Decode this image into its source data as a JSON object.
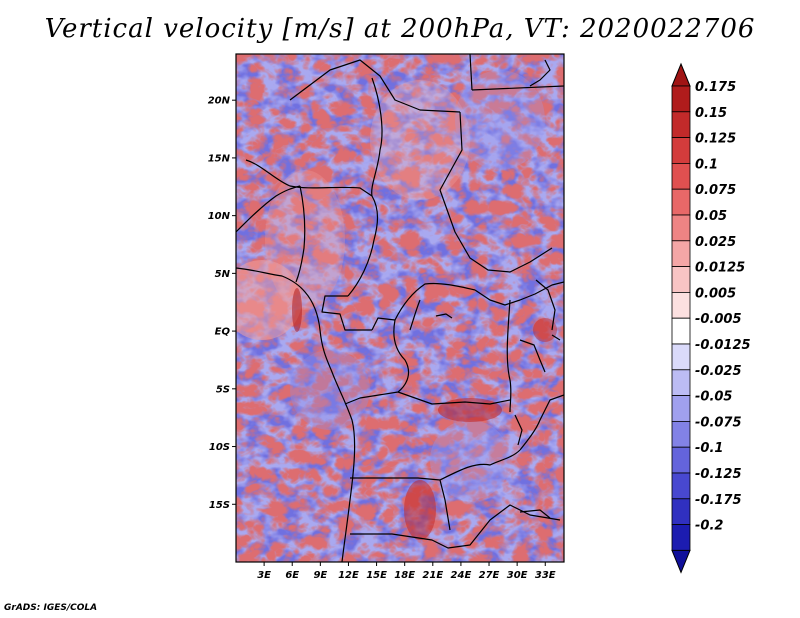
{
  "title": "Vertical velocity [m/s] at 200hPa, VT: 2020022706",
  "credit": "GrADS: IGES/COLA",
  "map": {
    "variable": "Vertical velocity",
    "units": "m/s",
    "level": "200hPa",
    "valid_time": "2020022706",
    "lon_range": [
      0,
      35
    ],
    "lat_range": [
      -20,
      24
    ],
    "lon_ticks": [
      {
        "value": 3,
        "label": "3E"
      },
      {
        "value": 6,
        "label": "6E"
      },
      {
        "value": 9,
        "label": "9E"
      },
      {
        "value": 12,
        "label": "12E"
      },
      {
        "value": 15,
        "label": "15E"
      },
      {
        "value": 18,
        "label": "18E"
      },
      {
        "value": 21,
        "label": "21E"
      },
      {
        "value": 24,
        "label": "24E"
      },
      {
        "value": 27,
        "label": "27E"
      },
      {
        "value": 30,
        "label": "30E"
      },
      {
        "value": 33,
        "label": "33E"
      }
    ],
    "lat_ticks": [
      {
        "value": 20,
        "label": "20N"
      },
      {
        "value": 15,
        "label": "15N"
      },
      {
        "value": 10,
        "label": "10N"
      },
      {
        "value": 5,
        "label": "5N"
      },
      {
        "value": 0,
        "label": "EQ"
      },
      {
        "value": -5,
        "label": "5S"
      },
      {
        "value": -10,
        "label": "10S"
      },
      {
        "value": -15,
        "label": "15S"
      }
    ]
  },
  "colorbar": {
    "levels": [
      {
        "label": "0.175",
        "color": "#b01c1c"
      },
      {
        "label": "0.15",
        "color": "#c22a2a"
      },
      {
        "label": "0.125",
        "color": "#d33c3c"
      },
      {
        "label": "0.1",
        "color": "#e05050"
      },
      {
        "label": "0.075",
        "color": "#e86868"
      },
      {
        "label": "0.05",
        "color": "#ee8484"
      },
      {
        "label": "0.025",
        "color": "#f4a6a6"
      },
      {
        "label": "0.0125",
        "color": "#f8c4c4"
      },
      {
        "label": "0.005",
        "color": "#fce0e0"
      },
      {
        "label": "-0.005",
        "color": "#ffffff"
      },
      {
        "label": "-0.0125",
        "color": "#dadafa"
      },
      {
        "label": "-0.025",
        "color": "#bcbcf4"
      },
      {
        "label": "-0.05",
        "color": "#a0a0ee"
      },
      {
        "label": "-0.075",
        "color": "#8282e6"
      },
      {
        "label": "-0.1",
        "color": "#6464dc"
      },
      {
        "label": "-0.125",
        "color": "#4848d0"
      },
      {
        "label": "-0.175",
        "color": "#3030c0"
      },
      {
        "label": "-0.2",
        "color": "#1c1cb0"
      }
    ],
    "top_arrow_color": "#a01414",
    "bottom_arrow_color": "#10109a"
  }
}
